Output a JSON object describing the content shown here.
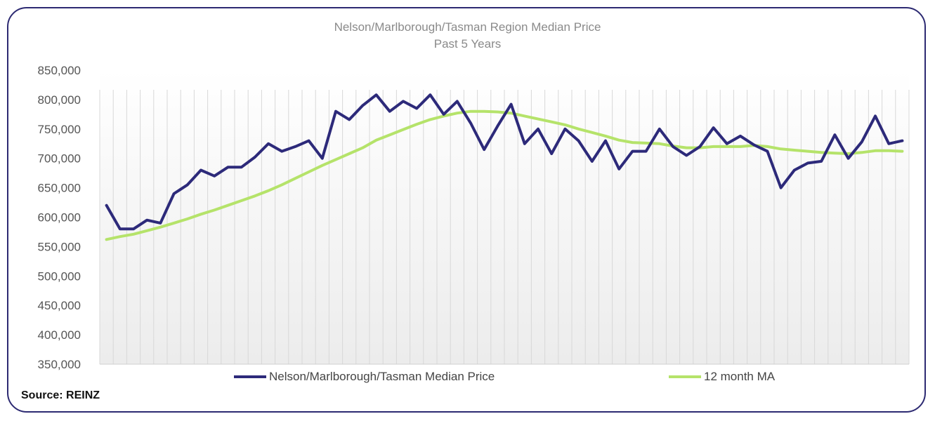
{
  "colors": {
    "frame": "#2d2a72",
    "median": "#2d2a7a",
    "ma": "#b5e36a",
    "grid": "#d8d8d8",
    "axis_text": "#555555",
    "title_text": "#8a8a8a"
  },
  "source": "Source: REINZ",
  "chart_data": {
    "type": "line",
    "title": "Nelson/Marlborough/Tasman  Region Median Price",
    "subtitle": "Past 5 Years",
    "xlabel": "",
    "ylabel": "",
    "ylim": [
      350000,
      850000
    ],
    "yticks": [
      350000,
      400000,
      450000,
      500000,
      550000,
      600000,
      650000,
      700000,
      750000,
      800000,
      850000
    ],
    "ytick_labels": [
      "350,000",
      "400,000",
      "450,000",
      "500,000",
      "550,000",
      "600,000",
      "650,000",
      "700,000",
      "750,000",
      "800,000",
      "850,000"
    ],
    "grid": "vertical",
    "legend": "bottom",
    "x": [
      1,
      2,
      3,
      4,
      5,
      6,
      7,
      8,
      9,
      10,
      11,
      12,
      13,
      14,
      15,
      16,
      17,
      18,
      19,
      20,
      21,
      22,
      23,
      24,
      25,
      26,
      27,
      28,
      29,
      30,
      31,
      32,
      33,
      34,
      35,
      36,
      37,
      38,
      39,
      40,
      41,
      42,
      43,
      44,
      45,
      46,
      47,
      48,
      49,
      50,
      51,
      52,
      53,
      54,
      55,
      56,
      57,
      58,
      59,
      60
    ],
    "series": [
      {
        "name": "Nelson/Marlborough/Tasman Median Price",
        "values": [
          620000,
          580000,
          580000,
          595000,
          590000,
          640000,
          655000,
          680000,
          670000,
          685000,
          685000,
          702000,
          725000,
          712000,
          720000,
          730000,
          700000,
          780000,
          766000,
          790000,
          808000,
          780000,
          797000,
          785000,
          808000,
          775000,
          797000,
          760000,
          715000,
          755000,
          792000,
          725000,
          750000,
          708000,
          750000,
          730000,
          695000,
          730000,
          682000,
          712000,
          712000,
          750000,
          720000,
          705000,
          720000,
          752000,
          725000,
          738000,
          723000,
          712000,
          650000,
          680000,
          692000,
          695000,
          740000,
          700000,
          728000,
          772000,
          725000,
          730000
        ]
      },
      {
        "name": "12 month MA",
        "values": [
          562000,
          567000,
          571000,
          577000,
          583000,
          590000,
          597000,
          605000,
          612000,
          620000,
          628000,
          636000,
          645000,
          655000,
          666000,
          677000,
          688000,
          698000,
          708000,
          718000,
          731000,
          740000,
          749000,
          758000,
          766000,
          772000,
          777000,
          780000,
          780000,
          779000,
          777000,
          772000,
          767000,
          762000,
          757000,
          750000,
          744000,
          738000,
          731000,
          727000,
          726000,
          725000,
          721000,
          718000,
          718000,
          720000,
          720000,
          720000,
          722000,
          720000,
          716000,
          714000,
          712000,
          710000,
          709000,
          708000,
          710000,
          713000,
          713000,
          712000
        ]
      }
    ]
  }
}
